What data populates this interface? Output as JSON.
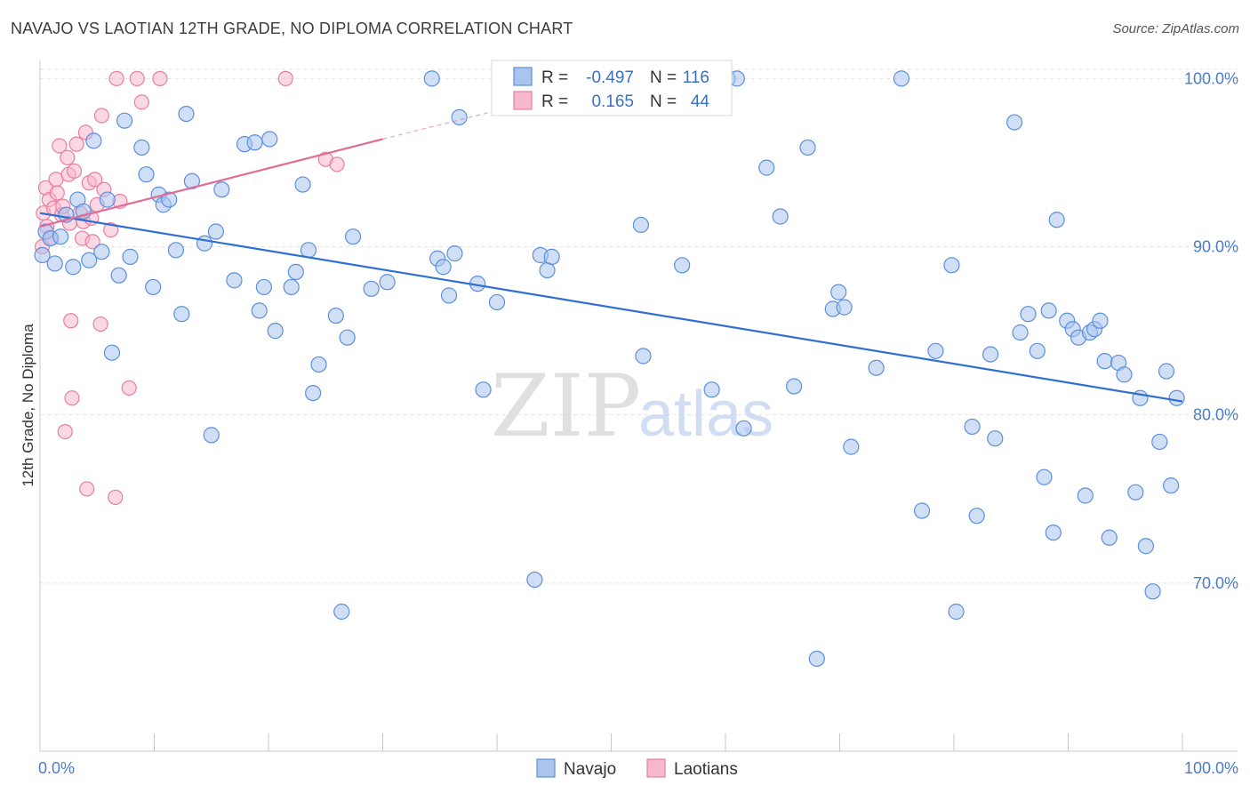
{
  "header": {
    "title": "NAVAJO VS LAOTIAN 12TH GRADE, NO DIPLOMA CORRELATION CHART",
    "source": "Source: ZipAtlas.com"
  },
  "chart_data": {
    "type": "scatter",
    "ylabel": "12th Grade, No Diploma",
    "xlim": [
      0,
      100
    ],
    "ylim": [
      60,
      101.5
    ],
    "x_tick_labels": [
      "0.0%",
      "100.0%"
    ],
    "y_ticks": [
      {
        "value": 70,
        "label": "70.0%"
      },
      {
        "value": 80,
        "label": "80.0%"
      },
      {
        "value": 90,
        "label": "90.0%"
      },
      {
        "value": 100,
        "label": "100.0%"
      }
    ],
    "grid": true,
    "colors": {
      "navajo_fill": "#aac4ee",
      "navajo_stroke": "#5b8fdb",
      "navajo_line": "#2f6fd0",
      "laotian_fill": "#f7b8cc",
      "laotian_stroke": "#e87ea0",
      "laotian_line": "#e06b95",
      "tick_label": "#4a7cc9",
      "grid": "#e2e2e2"
    },
    "legend": {
      "r_label": "R =",
      "n_label": "N =",
      "entries": [
        {
          "series": "Navajo",
          "r": "-0.497",
          "n": "116"
        },
        {
          "series": "Laotians",
          "r": "0.165",
          "n": "44"
        }
      ]
    },
    "watermark": {
      "zip": "ZIP",
      "atlas": "atlas"
    },
    "series": [
      {
        "name": "Navajo",
        "trend": {
          "x": [
            0,
            100
          ],
          "y": [
            92.0,
            80.8
          ]
        },
        "points": [
          [
            0.2,
            89.5
          ],
          [
            0.5,
            90.9
          ],
          [
            0.9,
            90.5
          ],
          [
            1.3,
            89.0
          ],
          [
            1.8,
            90.6
          ],
          [
            2.3,
            91.9
          ],
          [
            2.9,
            88.8
          ],
          [
            3.3,
            92.8
          ],
          [
            3.8,
            92.1
          ],
          [
            4.3,
            89.2
          ],
          [
            4.7,
            96.3
          ],
          [
            5.4,
            89.7
          ],
          [
            5.9,
            92.8
          ],
          [
            6.3,
            83.7
          ],
          [
            6.9,
            88.3
          ],
          [
            7.4,
            97.5
          ],
          [
            7.9,
            89.4
          ],
          [
            8.9,
            95.9
          ],
          [
            9.3,
            94.3
          ],
          [
            9.9,
            87.6
          ],
          [
            10.4,
            93.1
          ],
          [
            10.8,
            92.5
          ],
          [
            11.3,
            92.8
          ],
          [
            11.9,
            89.8
          ],
          [
            12.4,
            86.0
          ],
          [
            12.8,
            97.9
          ],
          [
            13.3,
            93.9
          ],
          [
            14.4,
            90.2
          ],
          [
            15.0,
            78.8
          ],
          [
            15.4,
            90.9
          ],
          [
            15.9,
            93.4
          ],
          [
            17.0,
            88.0
          ],
          [
            17.9,
            96.1
          ],
          [
            18.8,
            96.2
          ],
          [
            19.2,
            86.2
          ],
          [
            19.6,
            87.6
          ],
          [
            20.1,
            96.4
          ],
          [
            20.6,
            85.0
          ],
          [
            22.0,
            87.6
          ],
          [
            22.4,
            88.5
          ],
          [
            23.0,
            93.7
          ],
          [
            23.5,
            89.8
          ],
          [
            23.9,
            81.3
          ],
          [
            24.4,
            83.0
          ],
          [
            25.9,
            85.9
          ],
          [
            26.4,
            68.3
          ],
          [
            26.9,
            84.6
          ],
          [
            27.4,
            90.6
          ],
          [
            29.0,
            87.5
          ],
          [
            30.4,
            87.9
          ],
          [
            34.3,
            100.0
          ],
          [
            34.8,
            89.3
          ],
          [
            35.3,
            88.8
          ],
          [
            35.8,
            87.1
          ],
          [
            36.3,
            89.6
          ],
          [
            36.7,
            97.7
          ],
          [
            38.3,
            87.8
          ],
          [
            38.8,
            81.5
          ],
          [
            40.0,
            86.7
          ],
          [
            43.3,
            70.2
          ],
          [
            43.8,
            89.5
          ],
          [
            44.4,
            88.6
          ],
          [
            44.8,
            89.4
          ],
          [
            52.6,
            91.3
          ],
          [
            52.8,
            83.5
          ],
          [
            53.3,
            100.0
          ],
          [
            56.2,
            88.9
          ],
          [
            58.8,
            81.5
          ],
          [
            60.2,
            100.0
          ],
          [
            61.0,
            100.0
          ],
          [
            61.6,
            79.2
          ],
          [
            63.6,
            94.7
          ],
          [
            64.8,
            91.8
          ],
          [
            66.0,
            81.7
          ],
          [
            67.2,
            95.9
          ],
          [
            68.0,
            65.5
          ],
          [
            69.4,
            86.3
          ],
          [
            69.9,
            87.3
          ],
          [
            70.4,
            86.4
          ],
          [
            71.0,
            78.1
          ],
          [
            73.2,
            82.8
          ],
          [
            75.4,
            100.0
          ],
          [
            77.2,
            74.3
          ],
          [
            78.4,
            83.8
          ],
          [
            79.8,
            88.9
          ],
          [
            80.2,
            68.3
          ],
          [
            81.6,
            79.3
          ],
          [
            82.0,
            74.0
          ],
          [
            83.2,
            83.6
          ],
          [
            83.6,
            78.6
          ],
          [
            85.3,
            97.4
          ],
          [
            85.8,
            84.9
          ],
          [
            86.5,
            86.0
          ],
          [
            87.3,
            83.8
          ],
          [
            87.9,
            76.3
          ],
          [
            88.3,
            86.2
          ],
          [
            88.7,
            73.0
          ],
          [
            89.0,
            91.6
          ],
          [
            89.9,
            85.6
          ],
          [
            90.4,
            85.1
          ],
          [
            90.9,
            84.6
          ],
          [
            91.5,
            75.2
          ],
          [
            91.9,
            84.9
          ],
          [
            92.3,
            85.1
          ],
          [
            92.8,
            85.6
          ],
          [
            93.2,
            83.2
          ],
          [
            93.6,
            72.7
          ],
          [
            94.4,
            83.1
          ],
          [
            94.9,
            82.4
          ],
          [
            95.9,
            75.4
          ],
          [
            96.3,
            81.0
          ],
          [
            96.8,
            72.2
          ],
          [
            97.4,
            69.5
          ],
          [
            98.0,
            78.4
          ],
          [
            98.6,
            82.6
          ],
          [
            99.0,
            75.8
          ],
          [
            99.5,
            81.0
          ]
        ]
      },
      {
        "name": "Laotians",
        "trend": {
          "x": [
            0,
            30
          ],
          "y": [
            91.2,
            96.4
          ],
          "dashed_extension": {
            "x": [
              30,
              40
            ],
            "y": [
              96.4,
              98.1
            ]
          }
        },
        "points": [
          [
            0.2,
            90.0
          ],
          [
            0.3,
            92.0
          ],
          [
            0.5,
            93.5
          ],
          [
            0.6,
            91.2
          ],
          [
            0.8,
            92.8
          ],
          [
            1.0,
            90.5
          ],
          [
            1.2,
            92.3
          ],
          [
            1.4,
            94.0
          ],
          [
            1.5,
            93.2
          ],
          [
            1.7,
            96.0
          ],
          [
            1.9,
            91.9
          ],
          [
            2.0,
            92.4
          ],
          [
            2.2,
            79.0
          ],
          [
            2.4,
            95.3
          ],
          [
            2.5,
            94.3
          ],
          [
            2.6,
            91.4
          ],
          [
            2.7,
            85.6
          ],
          [
            2.8,
            81.0
          ],
          [
            3.0,
            94.5
          ],
          [
            3.2,
            96.1
          ],
          [
            3.5,
            92.0
          ],
          [
            3.7,
            90.5
          ],
          [
            3.8,
            91.5
          ],
          [
            4.0,
            96.8
          ],
          [
            4.1,
            75.6
          ],
          [
            4.3,
            93.8
          ],
          [
            4.5,
            91.7
          ],
          [
            4.6,
            90.3
          ],
          [
            4.8,
            94.0
          ],
          [
            5.0,
            92.5
          ],
          [
            5.3,
            85.4
          ],
          [
            5.4,
            97.8
          ],
          [
            5.6,
            93.4
          ],
          [
            6.2,
            91.0
          ],
          [
            6.6,
            75.1
          ],
          [
            6.7,
            100.0
          ],
          [
            7.0,
            92.7
          ],
          [
            7.8,
            81.6
          ],
          [
            8.5,
            100.0
          ],
          [
            8.9,
            98.6
          ],
          [
            10.5,
            100.0
          ],
          [
            21.5,
            100.0
          ],
          [
            25.0,
            95.2
          ],
          [
            26.0,
            94.9
          ]
        ]
      }
    ]
  },
  "bottom_legend": [
    "Navajo",
    "Laotians"
  ]
}
